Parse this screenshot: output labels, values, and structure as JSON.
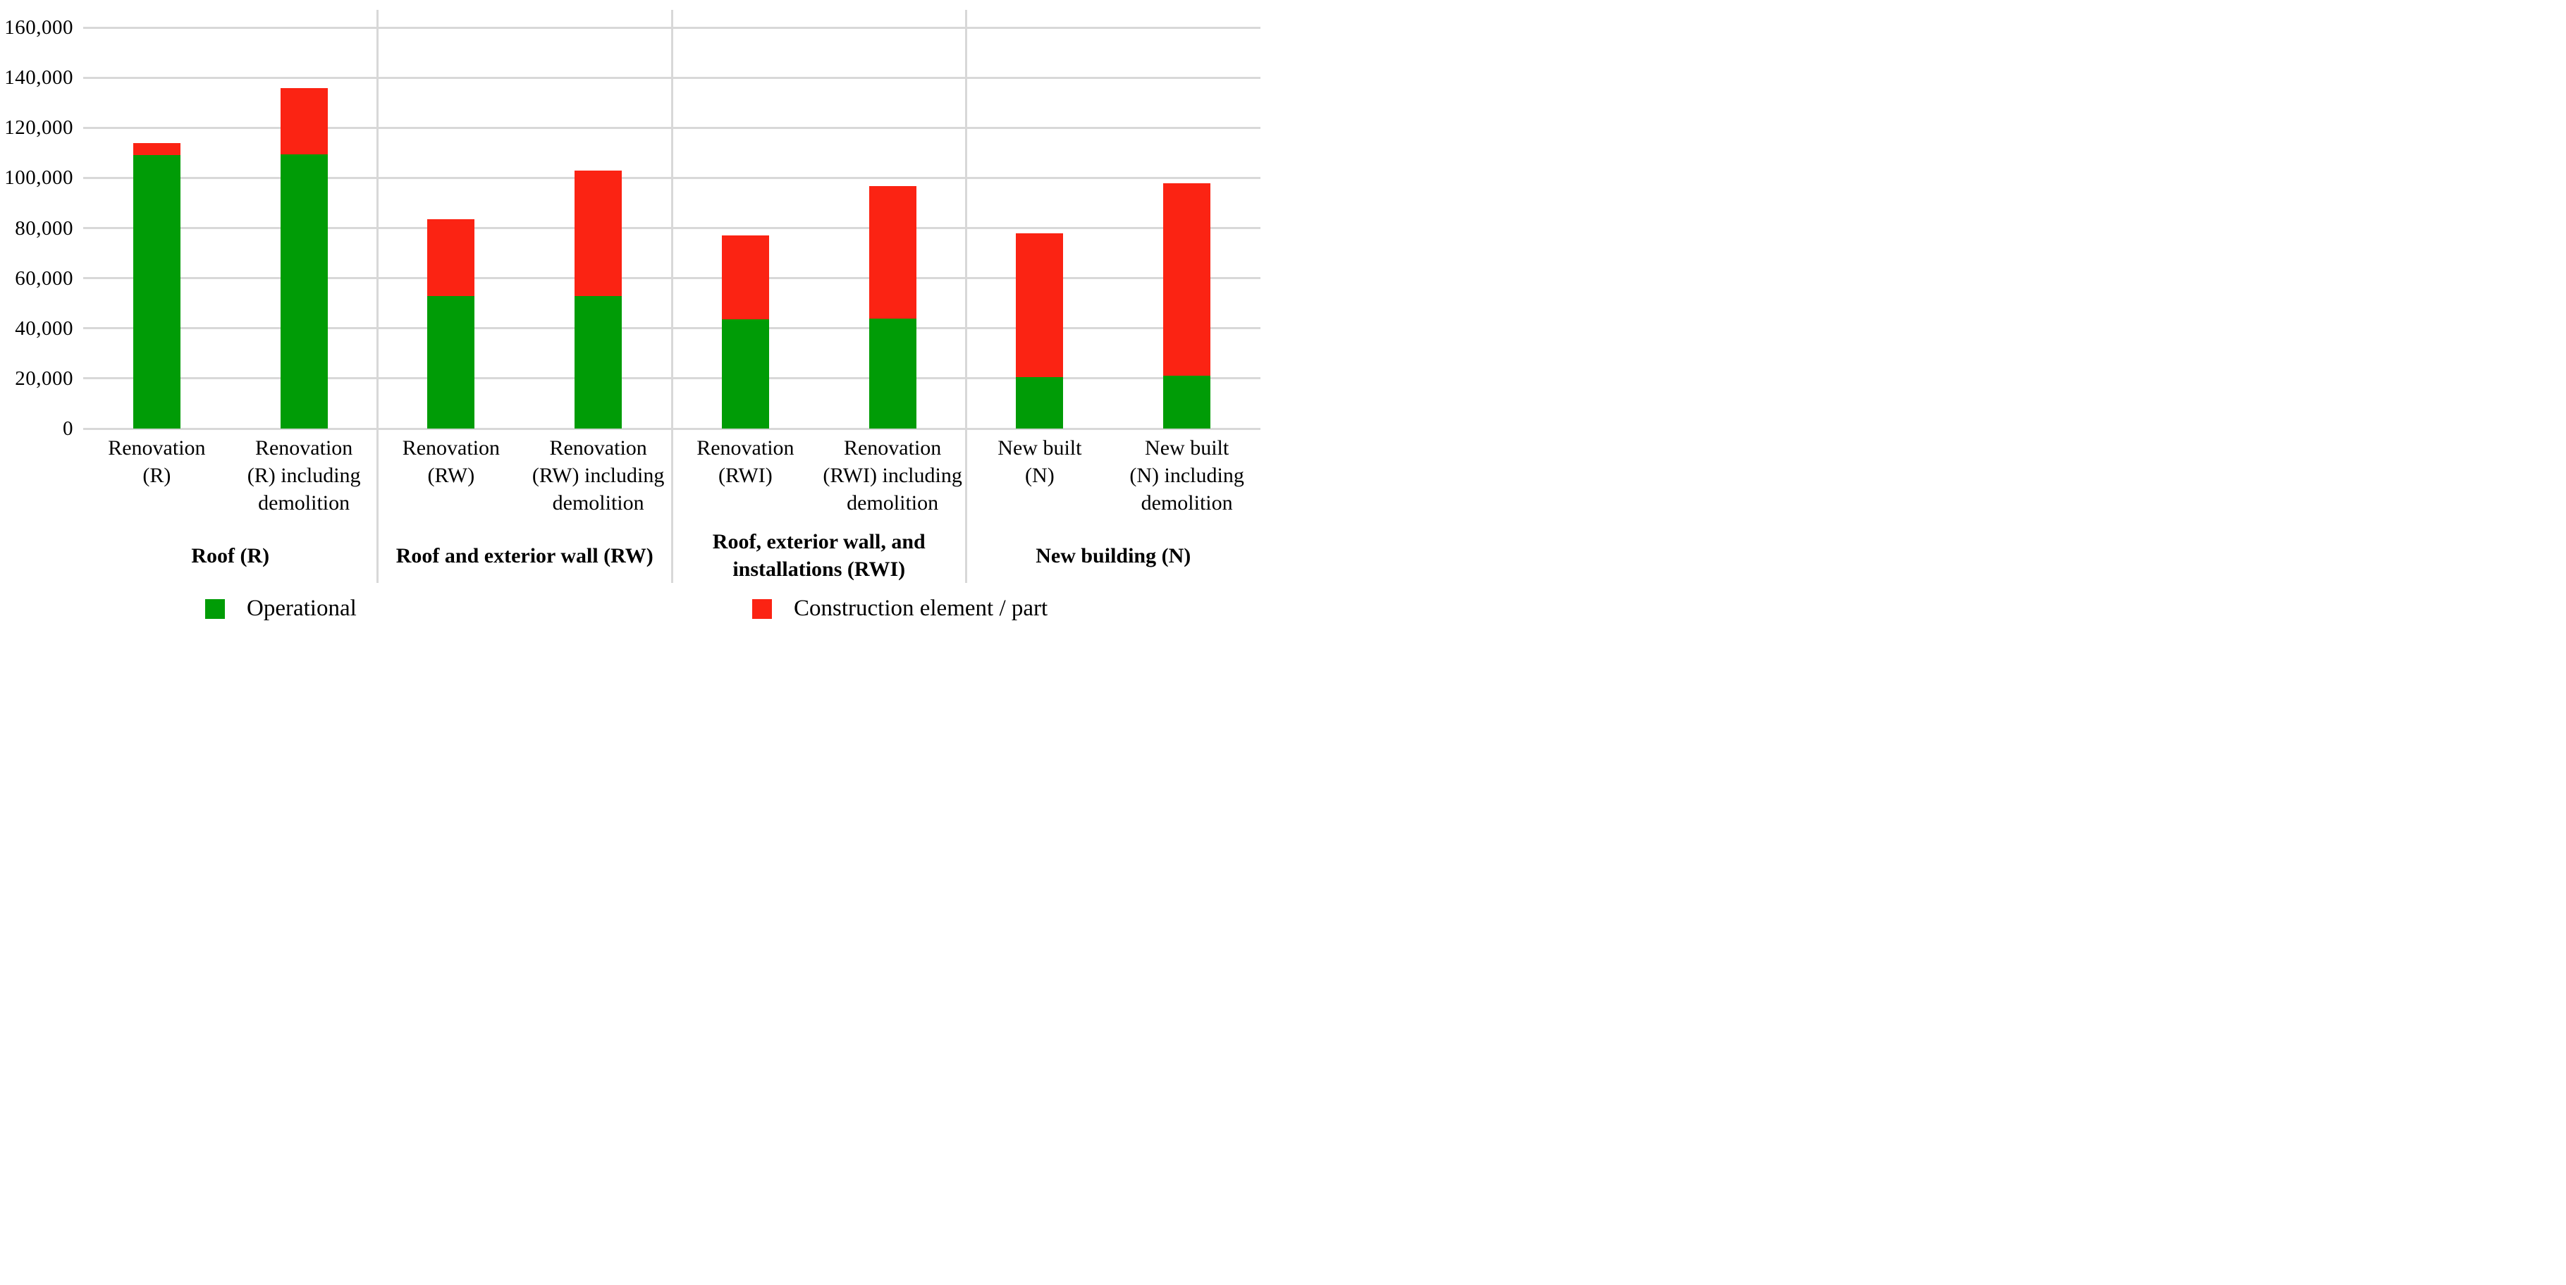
{
  "figure": {
    "background": "#ffffff",
    "grid_color": "#d8d8d8",
    "group_divider_color": "#d8d8d8"
  },
  "chart_data": {
    "type": "bar",
    "stacked": true,
    "title": "",
    "xlabel": "",
    "ylabel": "",
    "ylim": [
      0,
      160000
    ],
    "ytick_step": 20000,
    "ytick_labels": [
      "0",
      "20,000",
      "40,000",
      "60,000",
      "80,000",
      "100,000",
      "120,000",
      "140,000",
      "160,000"
    ],
    "grid": "horizontal",
    "legend_position": "bottom",
    "groups": [
      "Roof (R)",
      "Roof and exterior wall (RW)",
      "Roof, exterior wall, and installations (RWI)",
      "New building (N)"
    ],
    "groups_wrapped": [
      [
        "Roof (R)"
      ],
      [
        "Roof and exterior wall (RW)"
      ],
      [
        "Roof, exterior wall, and",
        "installations (RWI)"
      ],
      [
        "New building (N)"
      ]
    ],
    "categories": [
      "Renovation (R)",
      "Renovation (R) including demolition",
      "Renovation (RW)",
      "Renovation (RW) including demolition",
      "Renovation (RWI)",
      "Renovation (RWI) including demolition",
      "New built (N)",
      "New built (N) including demolition"
    ],
    "categories_wrapped": [
      [
        "Renovation",
        "(R)"
      ],
      [
        "Renovation",
        "(R) including",
        "demolition"
      ],
      [
        "Renovation",
        "(RW)"
      ],
      [
        "Renovation",
        "(RW) including",
        "demolition"
      ],
      [
        "Renovation",
        "(RWI)"
      ],
      [
        "Renovation",
        "(RWI) including",
        "demolition"
      ],
      [
        "New built",
        "(N)"
      ],
      [
        "New built",
        "(N) including",
        "demolition"
      ]
    ],
    "series": [
      {
        "name": "Operational",
        "color": "#009c06",
        "values": [
          109000,
          109300,
          52800,
          52900,
          43600,
          44000,
          20600,
          21200
        ]
      },
      {
        "name": "Construction element / part",
        "color": "#fb2313",
        "values": [
          5000,
          26500,
          30800,
          50100,
          33500,
          52800,
          57300,
          76600
        ]
      }
    ]
  }
}
